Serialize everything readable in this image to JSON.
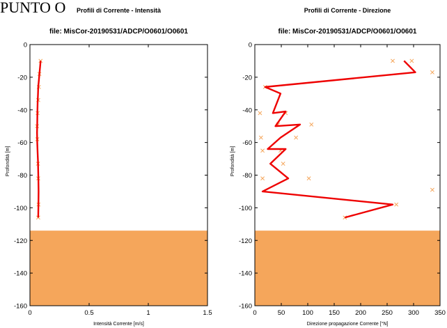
{
  "page_title": "PUNTO O",
  "colors": {
    "seabed": "#f5a65b",
    "profile_line": "#ee0000",
    "surface_line": "#3333cc",
    "samples": "#f5a65b",
    "axes": "#000000",
    "grid": "#e0e0e0"
  },
  "chart_data": [
    {
      "type": "line",
      "title": "Profili di Corrente - Intensità",
      "subtitle": "file: MisCor-20190531/ADCP/O0601/O0601",
      "xlabel": "Intensità Corrente [m/s]",
      "ylabel": "Profondità [m]",
      "xlim": [
        0,
        1.5
      ],
      "ylim": [
        -160,
        0
      ],
      "xticks": [
        "0",
        "0.5",
        "1",
        "1.5"
      ],
      "yticks": [
        "0",
        "-20",
        "-40",
        "-60",
        "-80",
        "-100",
        "-120",
        "-140",
        "-160"
      ],
      "surface_depth": 0,
      "seabed_depth": -114,
      "series": [
        {
          "x": [
            0.09,
            0.085,
            0.08,
            0.075,
            0.07,
            0.068,
            0.065,
            0.063,
            0.062,
            0.06,
            0.062,
            0.065,
            0.068,
            0.07,
            0.072,
            0.073,
            0.072,
            0.07
          ],
          "y": [
            -10,
            -14,
            -18,
            -22,
            -26,
            -30,
            -36,
            -42,
            -48,
            -54,
            -60,
            -66,
            -72,
            -78,
            -84,
            -90,
            -98,
            -106
          ]
        }
      ],
      "samples": {
        "x": [
          0.09,
          0.08,
          0.075,
          0.07,
          0.065,
          0.06,
          0.062,
          0.068,
          0.07,
          0.072,
          0.07
        ],
        "y": [
          -10,
          -18,
          -26,
          -34,
          -42,
          -50,
          -58,
          -73,
          -82,
          -98,
          -106
        ]
      }
    },
    {
      "type": "line",
      "title": "Profili di Corrente - Direzione",
      "subtitle": "file: MisCor-20190531/ADCP/O0601/O0601",
      "xlabel": "Direzione propagazione Corrente [°N]",
      "ylabel": "Profondità [m]",
      "xlim": [
        0,
        360
      ],
      "ylim": [
        -160,
        0
      ],
      "xticks": [
        "0",
        "50",
        "100",
        "150",
        "200",
        "250",
        "300",
        "350"
      ],
      "yticks": [
        "0",
        "-20",
        "-40",
        "-60",
        "-80",
        "-100",
        "-120",
        "-140",
        "-160"
      ],
      "surface_depth": 0,
      "seabed_depth": -114,
      "series": [
        {
          "x": [
            290,
            312,
            20,
            50,
            35,
            60,
            40,
            88,
            50,
            25,
            60,
            30,
            65,
            15,
            268,
            175
          ],
          "y": [
            -10,
            -17,
            -26,
            -30,
            -42,
            -41,
            -50,
            -49,
            -57,
            -64,
            -64,
            -73,
            -82,
            -90,
            -98,
            -106
          ]
        }
      ],
      "samples": {
        "x": [
          268,
          305,
          345,
          20,
          10,
          60,
          45,
          110,
          80,
          12,
          15,
          50,
          55,
          15,
          105,
          345,
          275,
          175
        ],
        "y": [
          -10,
          -10,
          -17,
          -26,
          -42,
          -42,
          -49,
          -49,
          -57,
          -57,
          -65,
          -65,
          -73,
          -82,
          -82,
          -89,
          -98,
          -106
        ]
      }
    }
  ]
}
